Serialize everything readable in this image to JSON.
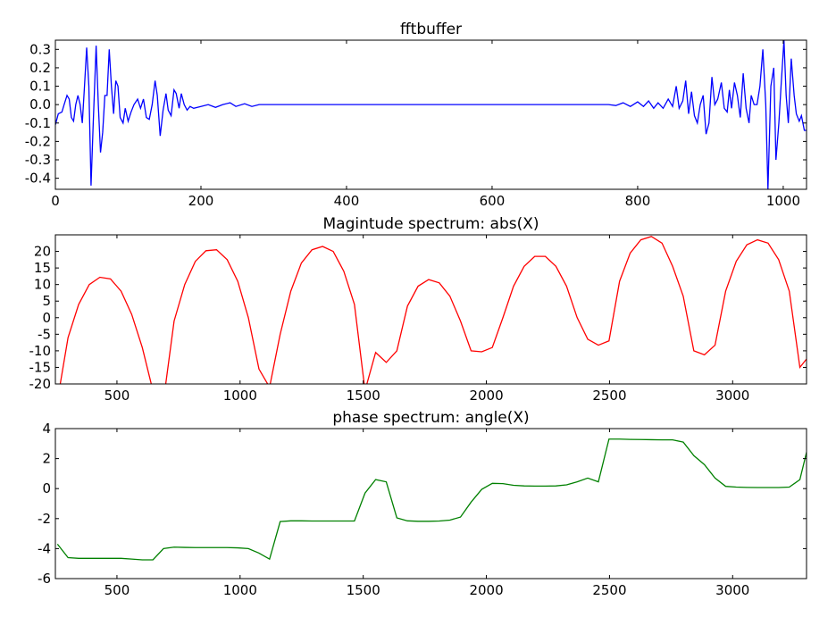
{
  "chart_data": [
    {
      "type": "line",
      "title": "fftbuffer",
      "color": "#0000ff",
      "xlim": [
        0,
        1032
      ],
      "ylim": [
        -0.46,
        0.35
      ],
      "xticks": [
        0,
        200,
        400,
        600,
        800,
        1000
      ],
      "yticks": [
        -0.4,
        -0.3,
        -0.2,
        -0.1,
        {
          "value": 0,
          "label": "0.0"
        },
        0.1,
        0.2,
        0.3
      ],
      "x": [
        0,
        4,
        9,
        12,
        16,
        19,
        22,
        25,
        28,
        31,
        34,
        37,
        40,
        43,
        46,
        49,
        52,
        56,
        59,
        62,
        65,
        68,
        71,
        74,
        77,
        80,
        83,
        86,
        89,
        93,
        96,
        100,
        104,
        108,
        113,
        117,
        121,
        125,
        129,
        133,
        137,
        140,
        144,
        148,
        152,
        155,
        159,
        163,
        166,
        170,
        173,
        177,
        181,
        185,
        190,
        200,
        210,
        220,
        230,
        240,
        248,
        260,
        270,
        280,
        300,
        500,
        760,
        770,
        780,
        790,
        800,
        808,
        815,
        822,
        828,
        835,
        842,
        848,
        853,
        857,
        862,
        866,
        870,
        874,
        878,
        882,
        886,
        890,
        894,
        898,
        902,
        906,
        910,
        915,
        919,
        923,
        926,
        929,
        933,
        937,
        941,
        945,
        949,
        953,
        956,
        960,
        964,
        968,
        972,
        976,
        979,
        983,
        987,
        990,
        994,
        997,
        1001,
        1004,
        1007,
        1011,
        1015,
        1018,
        1022,
        1025,
        1029,
        1032
      ],
      "values": [
        -0.11,
        -0.05,
        -0.04,
        0.0,
        0.05,
        0.03,
        -0.07,
        -0.09,
        0.0,
        0.05,
        0.0,
        -0.1,
        0.1,
        0.31,
        0.1,
        -0.44,
        -0.1,
        0.32,
        0.0,
        -0.26,
        -0.15,
        0.05,
        0.05,
        0.3,
        0.1,
        -0.05,
        0.13,
        0.1,
        -0.07,
        -0.1,
        -0.02,
        -0.09,
        -0.04,
        0.0,
        0.03,
        -0.02,
        0.03,
        -0.07,
        -0.08,
        0.0,
        0.13,
        0.05,
        -0.17,
        -0.03,
        0.06,
        -0.03,
        -0.06,
        0.08,
        0.06,
        -0.02,
        0.06,
        0.0,
        -0.03,
        -0.01,
        -0.02,
        -0.01,
        0.0,
        -0.015,
        0.0,
        0.01,
        -0.01,
        0.005,
        -0.01,
        0.0,
        0,
        0,
        0,
        -0.005,
        0.01,
        -0.01,
        0.015,
        -0.01,
        0.02,
        -0.02,
        0.01,
        -0.02,
        0.03,
        -0.01,
        0.1,
        -0.02,
        0.02,
        0.13,
        -0.05,
        0.07,
        -0.06,
        -0.1,
        0.0,
        0.05,
        -0.16,
        -0.1,
        0.15,
        0.0,
        0.03,
        0.12,
        -0.02,
        -0.04,
        0.08,
        -0.02,
        0.12,
        0.05,
        -0.07,
        0.17,
        -0.02,
        -0.1,
        0.05,
        0.0,
        0.0,
        0.1,
        0.3,
        0.0,
        -0.46,
        0.1,
        0.2,
        -0.3,
        -0.1,
        0.1,
        0.35,
        0.05,
        -0.1,
        0.25,
        0.05,
        -0.05,
        -0.09,
        -0.06,
        -0.14,
        -0.14
      ]
    },
    {
      "type": "line",
      "title": "Magintude spectrum: abs(X)",
      "color": "#ff0000",
      "xlim": [
        250,
        3300
      ],
      "ylim": [
        -20,
        25
      ],
      "xticks": [
        500,
        1000,
        1500,
        2000,
        2500,
        3000
      ],
      "yticks": [
        -20,
        -15,
        -10,
        -5,
        0,
        5,
        10,
        15,
        20
      ],
      "x": [
        258.4,
        301.5,
        344.5,
        387.6,
        430.7,
        473.7,
        516.8,
        559.9,
        602.9,
        646.0,
        689.1,
        732.1,
        775.2,
        818.3,
        861.3,
        904.4,
        947.5,
        990.5,
        1033.6,
        1076.7,
        1119.7,
        1162.8,
        1205.9,
        1248.9,
        1292.0,
        1335.1,
        1378.1,
        1421.2,
        1464.3,
        1507.3,
        1550.4,
        1593.5,
        1636.5,
        1679.6,
        1722.7,
        1765.7,
        1808.8,
        1851.9,
        1894.9,
        1938.0,
        1981.1,
        2024.1,
        2067.2,
        2110.3,
        2153.3,
        2196.4,
        2239.5,
        2282.5,
        2325.6,
        2368.7,
        2411.7,
        2454.8,
        2497.9,
        2540.9,
        2584.0,
        2627.1,
        2670.1,
        2713.2,
        2756.3,
        2799.3,
        2842.4,
        2885.4,
        2928.5,
        2971.6,
        3014.6,
        3057.7,
        3100.8,
        3143.8,
        3186.9,
        3230.0,
        3273.0,
        3316.1
      ],
      "values": [
        -25,
        -6,
        4,
        10,
        12.2,
        11.7,
        8,
        1,
        -9,
        -22,
        -25,
        -1,
        10,
        17,
        20.2,
        20.5,
        17.5,
        11,
        0,
        -15.5,
        -21,
        -5,
        8,
        16.5,
        20.5,
        21.5,
        20,
        14,
        4,
        -22,
        -10.5,
        -13.5,
        -10,
        3.5,
        9.5,
        11.5,
        10.5,
        6.5,
        -1,
        -10,
        -10.3,
        -9,
        0,
        9.5,
        15.5,
        18.5,
        18.5,
        15.5,
        9.5,
        0,
        -6.5,
        -8.3,
        -7,
        11,
        19.5,
        23.5,
        24.5,
        22.5,
        15.5,
        6.5,
        -10,
        -11.2,
        -8.3,
        8,
        17,
        22,
        23.5,
        22.5,
        17.5,
        8,
        -15,
        -11
      ]
    },
    {
      "type": "line",
      "title": "phase spectrum: angle(X)",
      "color": "#008000",
      "xlim": [
        250,
        3300
      ],
      "ylim": [
        -6,
        4
      ],
      "xticks": [
        500,
        1000,
        1500,
        2000,
        2500,
        3000
      ],
      "yticks": [
        -6,
        -4,
        -2,
        0,
        2,
        4
      ],
      "x": [
        258.4,
        301.5,
        344.5,
        387.6,
        430.7,
        473.7,
        516.8,
        559.9,
        602.9,
        646.0,
        689.1,
        732.1,
        775.2,
        818.3,
        861.3,
        904.4,
        947.5,
        990.5,
        1033.6,
        1076.7,
        1119.7,
        1162.8,
        1205.9,
        1248.9,
        1292.0,
        1335.1,
        1378.1,
        1421.2,
        1464.3,
        1507.3,
        1550.4,
        1593.5,
        1636.5,
        1679.6,
        1722.7,
        1765.7,
        1808.8,
        1851.9,
        1894.9,
        1938.0,
        1981.1,
        2024.1,
        2067.2,
        2110.3,
        2153.3,
        2196.4,
        2239.5,
        2282.5,
        2325.6,
        2368.7,
        2411.7,
        2454.8,
        2497.9,
        2540.9,
        2584.0,
        2627.1,
        2670.1,
        2713.2,
        2756.3,
        2799.3,
        2842.4,
        2885.4,
        2928.5,
        2971.6,
        3014.6,
        3057.7,
        3100.8,
        3143.8,
        3186.9,
        3230.0,
        3273.0,
        3316.1
      ],
      "values": [
        -3.7,
        -4.6,
        -4.65,
        -4.65,
        -4.65,
        -4.65,
        -4.65,
        -4.7,
        -4.75,
        -4.75,
        -4.0,
        -3.9,
        -3.92,
        -3.93,
        -3.93,
        -3.93,
        -3.93,
        -3.95,
        -4.0,
        -4.3,
        -4.7,
        -2.2,
        -2.15,
        -2.15,
        -2.16,
        -2.16,
        -2.16,
        -2.16,
        -2.16,
        -0.3,
        0.6,
        0.45,
        -1.95,
        -2.15,
        -2.18,
        -2.18,
        -2.16,
        -2.1,
        -1.9,
        -0.9,
        -0.05,
        0.35,
        0.33,
        0.22,
        0.18,
        0.17,
        0.17,
        0.18,
        0.25,
        0.45,
        0.7,
        0.45,
        3.3,
        3.3,
        3.28,
        3.27,
        3.26,
        3.25,
        3.25,
        3.1,
        2.2,
        1.6,
        0.7,
        0.15,
        0.1,
        0.08,
        0.07,
        0.07,
        0.07,
        0.1,
        0.6,
        3.5
      ]
    }
  ]
}
